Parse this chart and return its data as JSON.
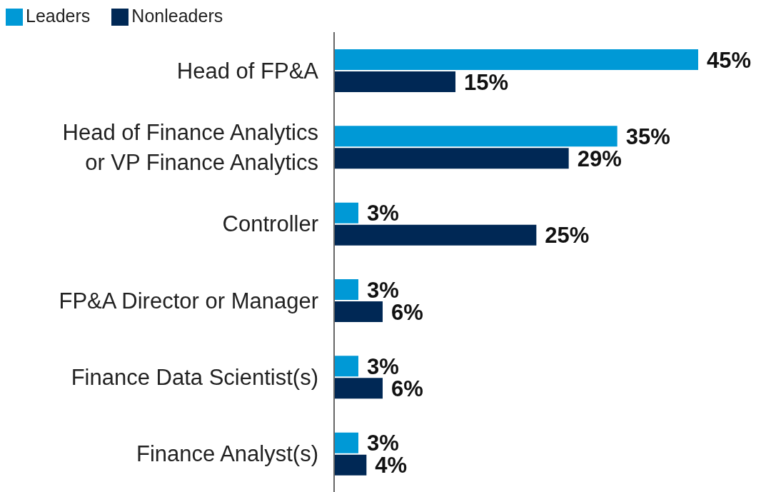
{
  "chart_data": {
    "type": "bar",
    "orientation": "horizontal",
    "legend": "top left",
    "categories": [
      "Head of FP&A",
      "Head of Finance Analytics\nor VP Finance Analytics",
      "Controller",
      "FP&A Director or Manager",
      "Finance Data Scientist(s)",
      "Finance Analyst(s)"
    ],
    "series": [
      {
        "name": "Leaders",
        "color": "#0099d6",
        "values": [
          45,
          35,
          3,
          3,
          3,
          3
        ],
        "value_labels": [
          "45%",
          "35%",
          "3%",
          "3%",
          "3%",
          "3%"
        ]
      },
      {
        "name": "Nonleaders",
        "color": "#002855",
        "values": [
          15,
          29,
          25,
          6,
          6,
          4
        ],
        "value_labels": [
          "15%",
          "29%",
          "25%",
          "6%",
          "6%",
          "4%"
        ]
      }
    ]
  }
}
